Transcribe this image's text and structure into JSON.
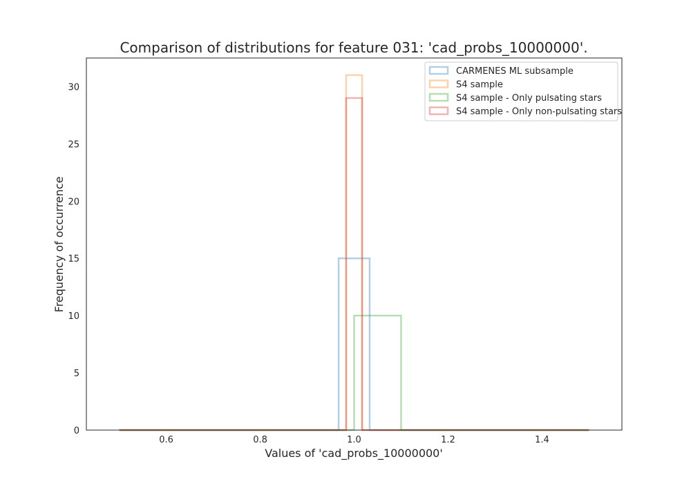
{
  "chart_data": {
    "type": "histogram",
    "title": "Comparison of distributions for feature 031: 'cad_probs_10000000'.",
    "xlabel": "Values of 'cad_probs_10000000'",
    "ylabel": "Frequency of occurrence",
    "xlim": [
      0.43,
      1.57
    ],
    "ylim": [
      0,
      32.5
    ],
    "x_ticks": [
      "0.6",
      "0.8",
      "1.0",
      "1.2",
      "1.4"
    ],
    "y_ticks": [
      "0",
      "5",
      "10",
      "15",
      "20",
      "25",
      "30"
    ],
    "grid": false,
    "legend_position": "top-right",
    "series": [
      {
        "name": "CARMENES ML subsample",
        "color": "#1f77b4",
        "baseline_range": [
          0.5,
          1.5
        ],
        "bins": [
          {
            "x0": 0.967,
            "x1": 1.033,
            "count": 15
          }
        ]
      },
      {
        "name": "S4 sample",
        "color": "#ff7f0e",
        "baseline_range": [
          0.5,
          1.5
        ],
        "bins": [
          {
            "x0": 0.983,
            "x1": 1.017,
            "count": 31
          }
        ]
      },
      {
        "name": "S4 sample - Only pulsating stars",
        "color": "#2ca02c",
        "baseline_range": [
          0.5,
          1.5
        ],
        "bins": [
          {
            "x0": 1.0,
            "x1": 1.1,
            "count": 10
          }
        ]
      },
      {
        "name": "S4 sample - Only non-pulsating stars",
        "color": "#d62728",
        "baseline_range": [
          0.5,
          1.5
        ],
        "bins": [
          {
            "x0": 0.983,
            "x1": 1.017,
            "count": 29
          }
        ]
      }
    ]
  }
}
